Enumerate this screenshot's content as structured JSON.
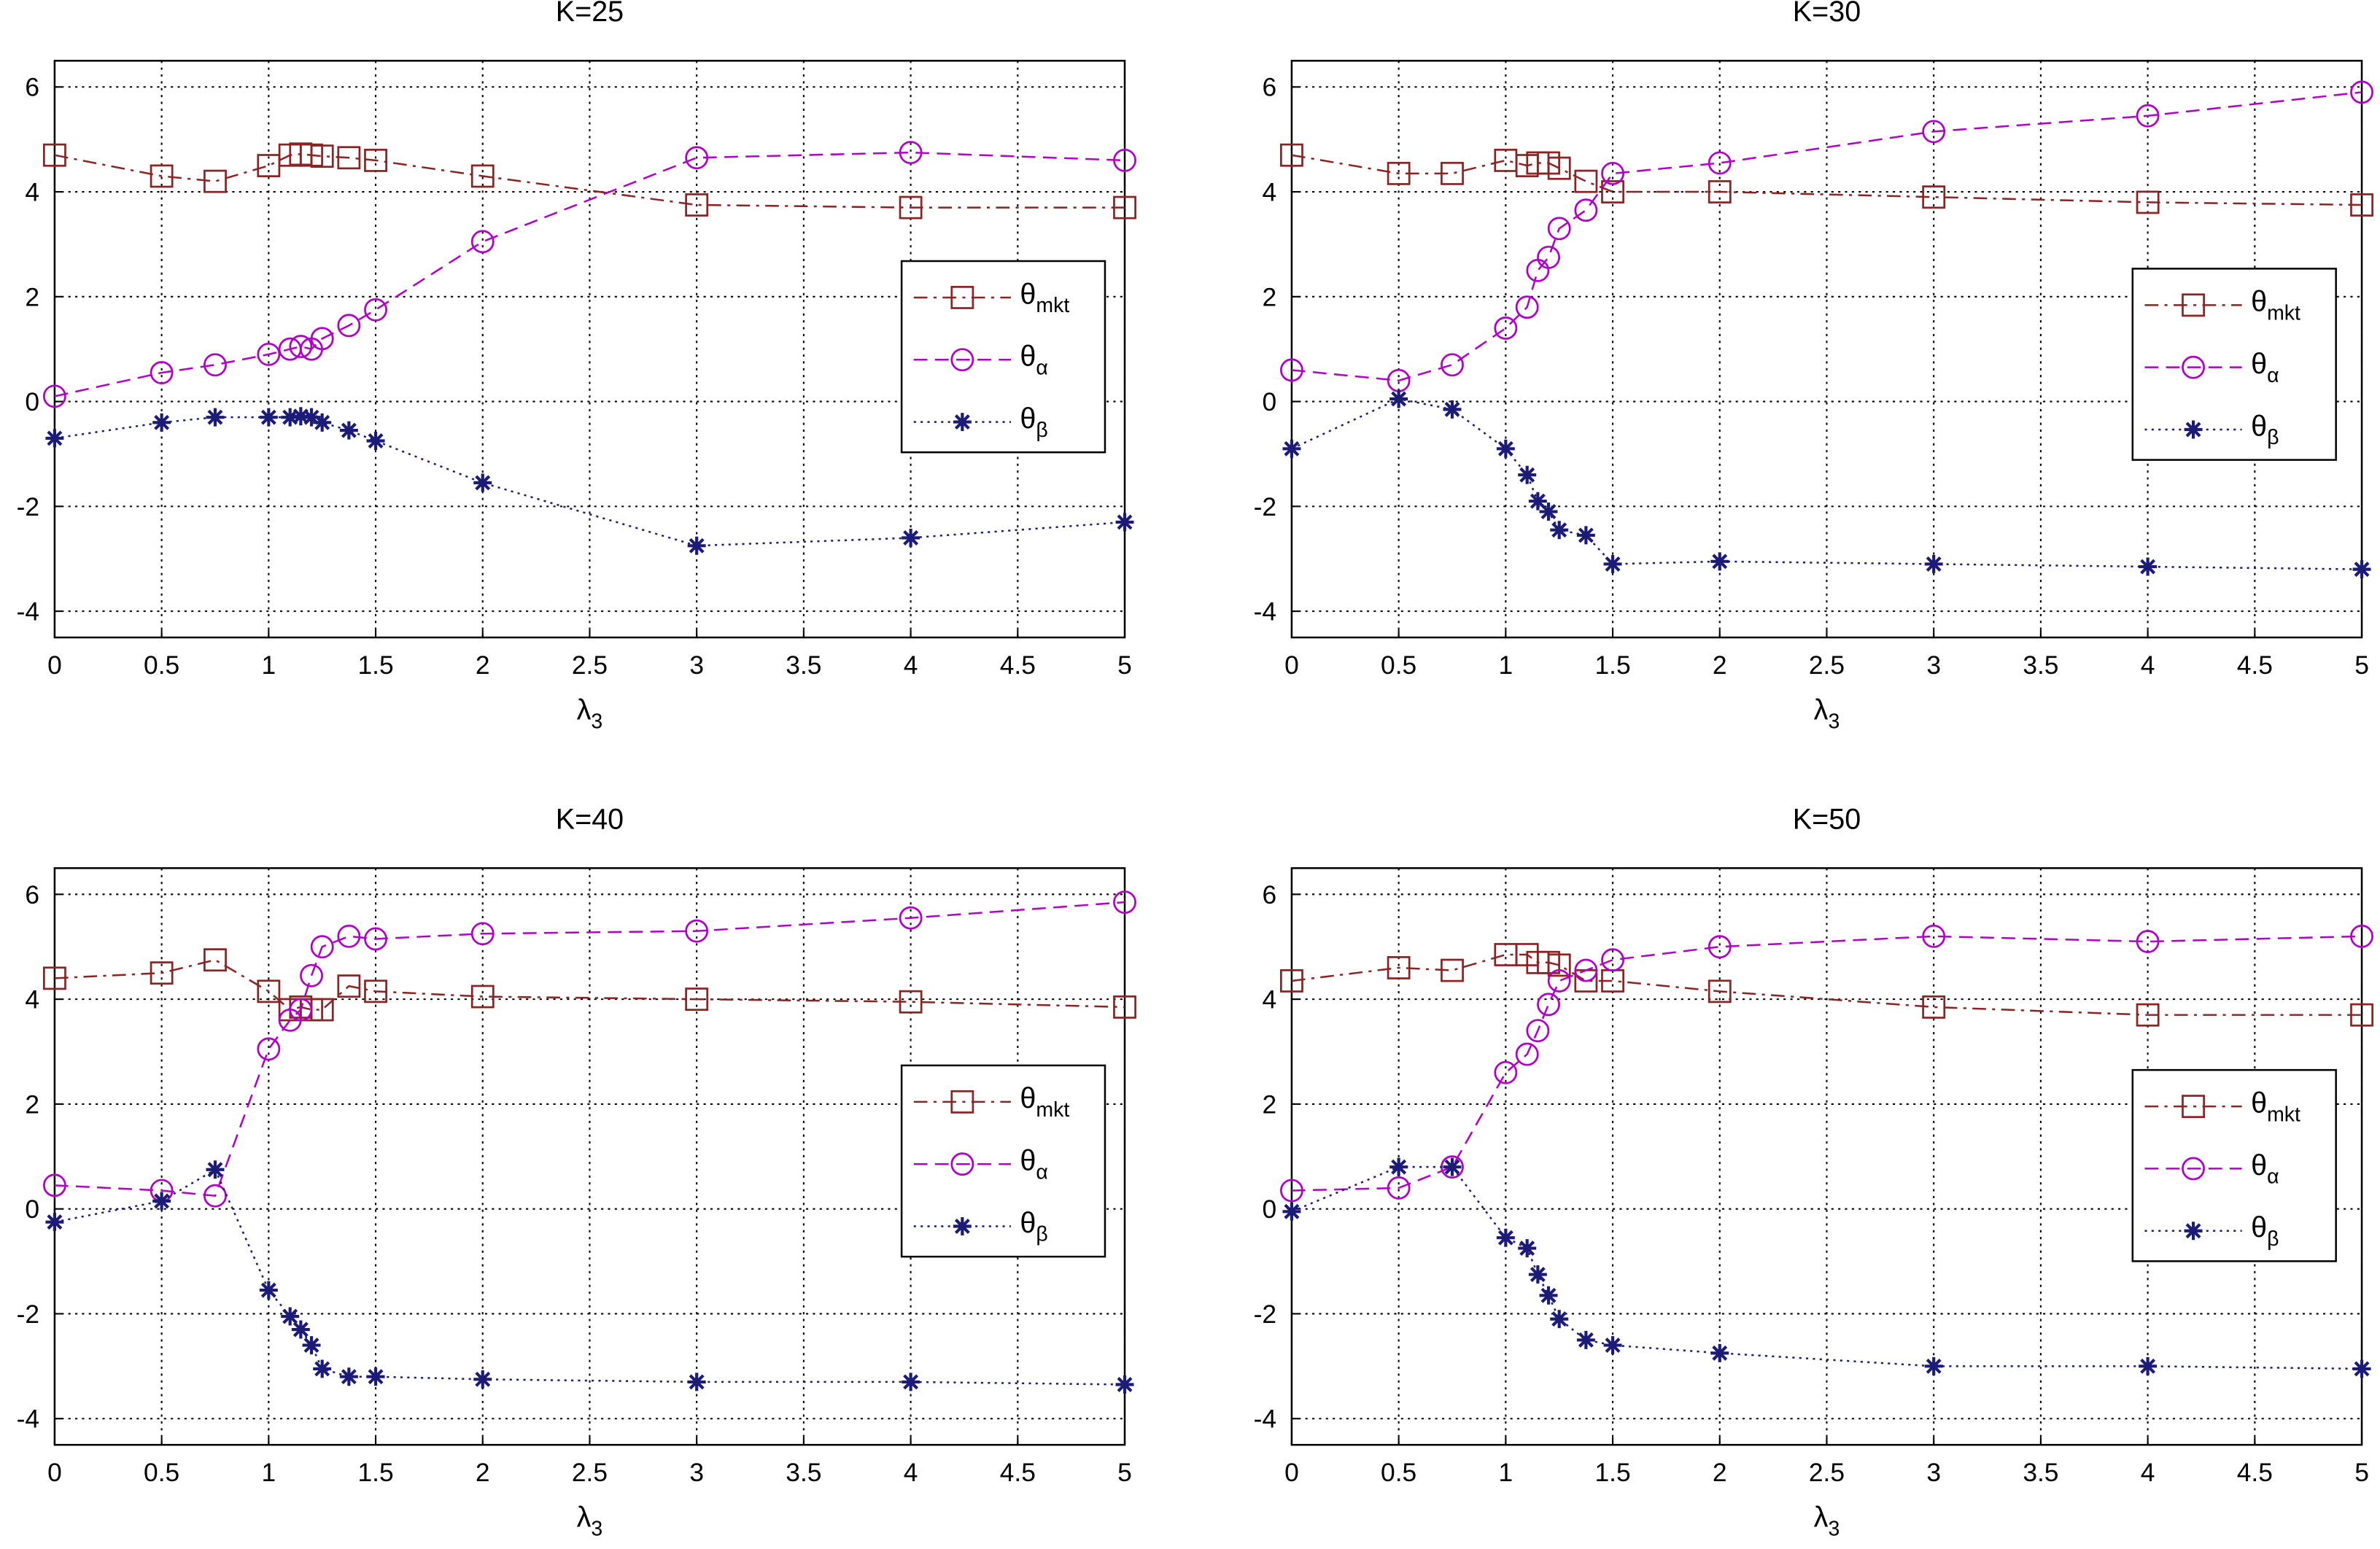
{
  "chart_data": [
    {
      "type": "line",
      "title": "K=25",
      "x_label": "λ3",
      "grid": true,
      "legend": "right",
      "x": [
        0,
        0.5,
        0.75,
        1,
        1.1,
        1.15,
        1.2,
        1.25,
        1.375,
        1.5,
        2,
        3,
        4,
        5
      ],
      "xlim": [
        0,
        5
      ],
      "xticks": [
        0,
        0.5,
        1,
        1.5,
        2,
        2.5,
        3,
        3.5,
        4,
        4.5,
        5
      ],
      "ylim": [
        -4.5,
        6.5
      ],
      "yticks": [
        -4,
        -2,
        0,
        2,
        4,
        6
      ],
      "series": [
        {
          "name": "θmkt",
          "color": "#8b2323",
          "marker": "square",
          "dash": "dashdot",
          "values": [
            4.7,
            4.3,
            4.2,
            4.5,
            4.7,
            4.72,
            4.7,
            4.68,
            4.65,
            4.6,
            4.3,
            3.75,
            3.7,
            3.7
          ]
        },
        {
          "name": "θα",
          "color": "#b000c8",
          "marker": "circle",
          "dash": "dashed",
          "values": [
            0.1,
            0.55,
            0.7,
            0.9,
            1.0,
            1.05,
            1.0,
            1.2,
            1.45,
            1.75,
            3.05,
            4.65,
            4.75,
            4.6
          ]
        },
        {
          "name": "θβ",
          "color": "#1c1c78",
          "marker": "star",
          "dash": "dotted",
          "values": [
            -0.7,
            -0.4,
            -0.3,
            -0.3,
            -0.3,
            -0.28,
            -0.3,
            -0.4,
            -0.55,
            -0.75,
            -1.55,
            -2.75,
            -2.6,
            -2.3
          ]
        }
      ]
    },
    {
      "type": "line",
      "title": "K=30",
      "x_label": "λ3",
      "grid": true,
      "legend": "right",
      "x": [
        0,
        0.5,
        0.75,
        1,
        1.1,
        1.15,
        1.2,
        1.25,
        1.375,
        1.5,
        2,
        3,
        4,
        5
      ],
      "xlim": [
        0,
        5
      ],
      "xticks": [
        0,
        0.5,
        1,
        1.5,
        2,
        2.5,
        3,
        3.5,
        4,
        4.5,
        5
      ],
      "ylim": [
        -4.5,
        6.5
      ],
      "yticks": [
        -4,
        -2,
        0,
        2,
        4,
        6
      ],
      "series": [
        {
          "name": "θmkt",
          "color": "#8b2323",
          "marker": "square",
          "dash": "dashdot",
          "values": [
            4.7,
            4.35,
            4.35,
            4.6,
            4.5,
            4.55,
            4.55,
            4.45,
            4.2,
            4.0,
            4.0,
            3.9,
            3.8,
            3.75
          ]
        },
        {
          "name": "θα",
          "color": "#b000c8",
          "marker": "circle",
          "dash": "dashed",
          "values": [
            0.6,
            0.4,
            0.7,
            1.4,
            1.8,
            2.5,
            2.75,
            3.3,
            3.65,
            4.35,
            4.55,
            5.15,
            5.45,
            5.9
          ]
        },
        {
          "name": "θβ",
          "color": "#1c1c78",
          "marker": "star",
          "dash": "dotted",
          "values": [
            -0.9,
            0.05,
            -0.15,
            -0.9,
            -1.4,
            -1.9,
            -2.1,
            -2.45,
            -2.55,
            -3.1,
            -3.05,
            -3.1,
            -3.15,
            -3.2
          ]
        }
      ]
    },
    {
      "type": "line",
      "title": "K=40",
      "x_label": "λ3",
      "grid": true,
      "legend": "right",
      "x": [
        0,
        0.5,
        0.75,
        1,
        1.1,
        1.15,
        1.2,
        1.25,
        1.375,
        1.5,
        2,
        3,
        4,
        5
      ],
      "xlim": [
        0,
        5
      ],
      "xticks": [
        0,
        0.5,
        1,
        1.5,
        2,
        2.5,
        3,
        3.5,
        4,
        4.5,
        5
      ],
      "ylim": [
        -4.5,
        6.5
      ],
      "yticks": [
        -4,
        -2,
        0,
        2,
        4,
        6
      ],
      "series": [
        {
          "name": "θmkt",
          "color": "#8b2323",
          "marker": "square",
          "dash": "dashdot",
          "values": [
            4.4,
            4.5,
            4.75,
            4.15,
            3.8,
            3.85,
            3.8,
            3.8,
            4.25,
            4.15,
            4.05,
            4.0,
            3.95,
            3.85
          ]
        },
        {
          "name": "θα",
          "color": "#b000c8",
          "marker": "circle",
          "dash": "dashed",
          "values": [
            0.45,
            0.35,
            0.25,
            3.05,
            3.6,
            3.8,
            4.45,
            5.0,
            5.2,
            5.15,
            5.25,
            5.3,
            5.55,
            5.85
          ]
        },
        {
          "name": "θβ",
          "color": "#1c1c78",
          "marker": "star",
          "dash": "dotted",
          "values": [
            -0.25,
            0.15,
            0.75,
            -1.55,
            -2.05,
            -2.3,
            -2.6,
            -3.05,
            -3.2,
            -3.2,
            -3.25,
            -3.3,
            -3.3,
            -3.35
          ]
        }
      ]
    },
    {
      "type": "line",
      "title": "K=50",
      "x_label": "λ3",
      "grid": true,
      "legend": "right",
      "x": [
        0,
        0.5,
        0.75,
        1,
        1.1,
        1.15,
        1.2,
        1.25,
        1.375,
        1.5,
        2,
        3,
        4,
        5
      ],
      "xlim": [
        0,
        5
      ],
      "xticks": [
        0,
        0.5,
        1,
        1.5,
        2,
        2.5,
        3,
        3.5,
        4,
        4.5,
        5
      ],
      "ylim": [
        -4.5,
        6.5
      ],
      "yticks": [
        -4,
        -2,
        0,
        2,
        4,
        6
      ],
      "series": [
        {
          "name": "θmkt",
          "color": "#8b2323",
          "marker": "square",
          "dash": "dashdot",
          "values": [
            4.35,
            4.6,
            4.55,
            4.85,
            4.85,
            4.7,
            4.7,
            4.65,
            4.35,
            4.35,
            4.15,
            3.85,
            3.7,
            3.7
          ]
        },
        {
          "name": "θα",
          "color": "#b000c8",
          "marker": "circle",
          "dash": "dashed",
          "values": [
            0.35,
            0.4,
            0.8,
            2.6,
            2.95,
            3.4,
            3.9,
            4.35,
            4.55,
            4.75,
            5.0,
            5.2,
            5.1,
            5.2
          ]
        },
        {
          "name": "θβ",
          "color": "#1c1c78",
          "marker": "star",
          "dash": "dotted",
          "values": [
            -0.05,
            0.8,
            0.8,
            -0.55,
            -0.75,
            -1.25,
            -1.65,
            -2.1,
            -2.5,
            -2.6,
            -2.75,
            -3.0,
            -3.0,
            -3.05
          ]
        }
      ]
    }
  ]
}
